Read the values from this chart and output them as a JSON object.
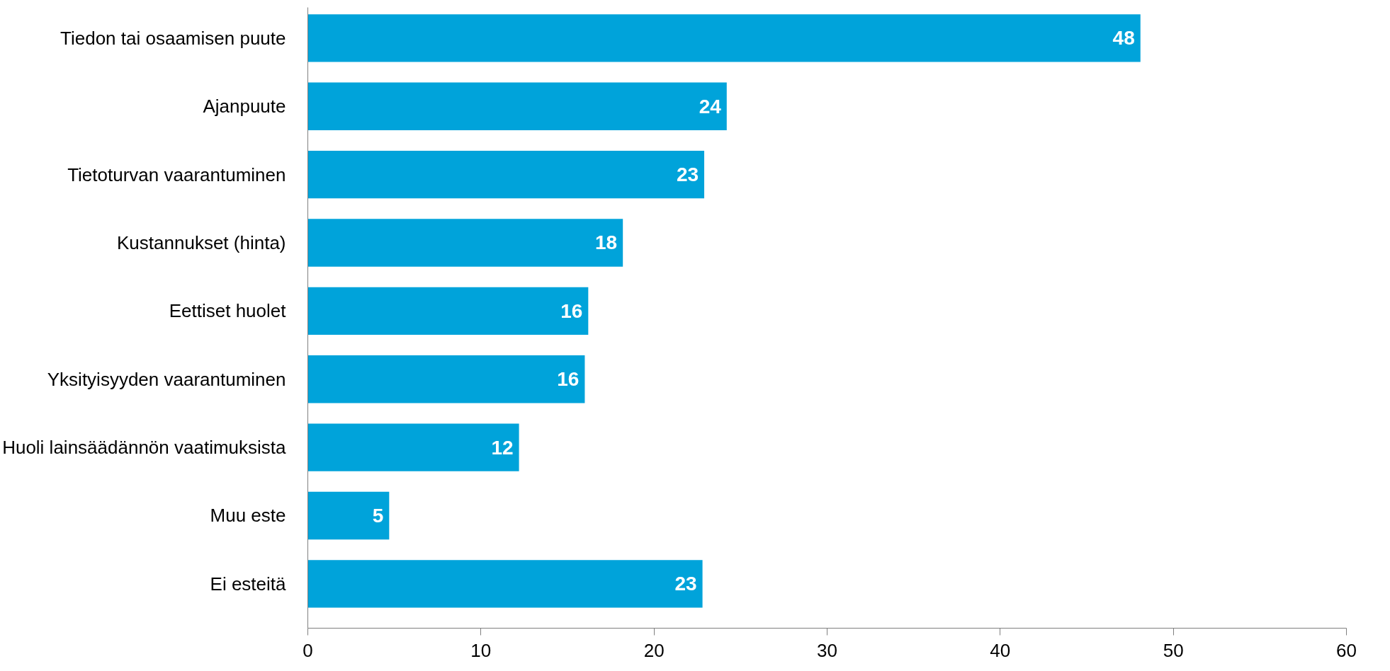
{
  "chart_data": {
    "type": "bar",
    "orientation": "horizontal",
    "categories": [
      "Tiedon tai osaamisen puute",
      "Ajanpuute",
      "Tietoturvan vaarantuminen",
      "Kustannukset (hinta)",
      "Eettiset huolet",
      "Yksityisyyden vaarantuminen",
      "Huoli lainsäädännön vaatimuksista",
      "Muu este",
      "Ei esteitä"
    ],
    "values": [
      48.1,
      24.2,
      22.9,
      18.2,
      16.2,
      16.0,
      12.2,
      4.7,
      22.8
    ],
    "value_labels": [
      "48",
      "24",
      "23",
      "18",
      "16",
      "16",
      "12",
      "5",
      "23"
    ],
    "color": "#00a3da",
    "xlim": [
      0,
      60
    ],
    "xticks": [
      0,
      10,
      20,
      30,
      40,
      50,
      60
    ],
    "grid": false
  }
}
